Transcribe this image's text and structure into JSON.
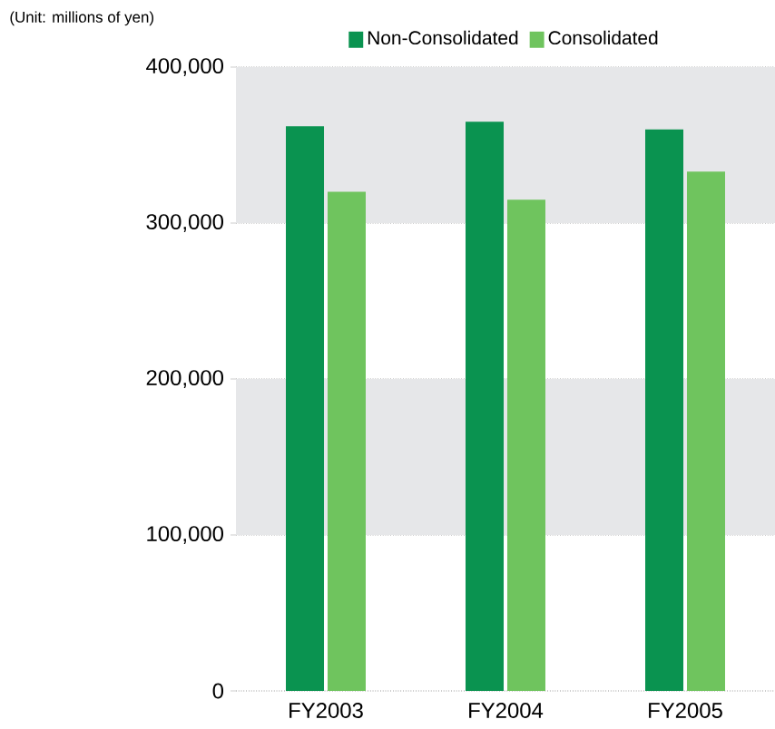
{
  "chart_data": {
    "type": "bar",
    "categories": [
      "FY2003",
      "FY2004",
      "FY2005"
    ],
    "series": [
      {
        "name": "Non-Consolidated",
        "color": "#0a9350",
        "values": [
          362000,
          365000,
          360000
        ]
      },
      {
        "name": "Consolidated",
        "color": "#6fc45e",
        "values": [
          320000,
          315000,
          333000
        ]
      }
    ],
    "ylim": [
      0,
      400000
    ],
    "yticks": [
      {
        "value": 0,
        "label": "0"
      },
      {
        "value": 100000,
        "label": "100,000"
      },
      {
        "value": 200000,
        "label": "200,000"
      },
      {
        "value": 300000,
        "label": "300,000"
      },
      {
        "value": 400000,
        "label": "400,000"
      }
    ],
    "bands": [
      {
        "axis": "y",
        "from": 100000,
        "to": 200000,
        "color": "#e6e7e9"
      },
      {
        "axis": "y",
        "from": 300000,
        "to": 400000,
        "color": "#e6e7e9"
      }
    ],
    "grid": "y",
    "legend": "top",
    "annotations": [
      "(Unit: millions of yen)"
    ]
  }
}
